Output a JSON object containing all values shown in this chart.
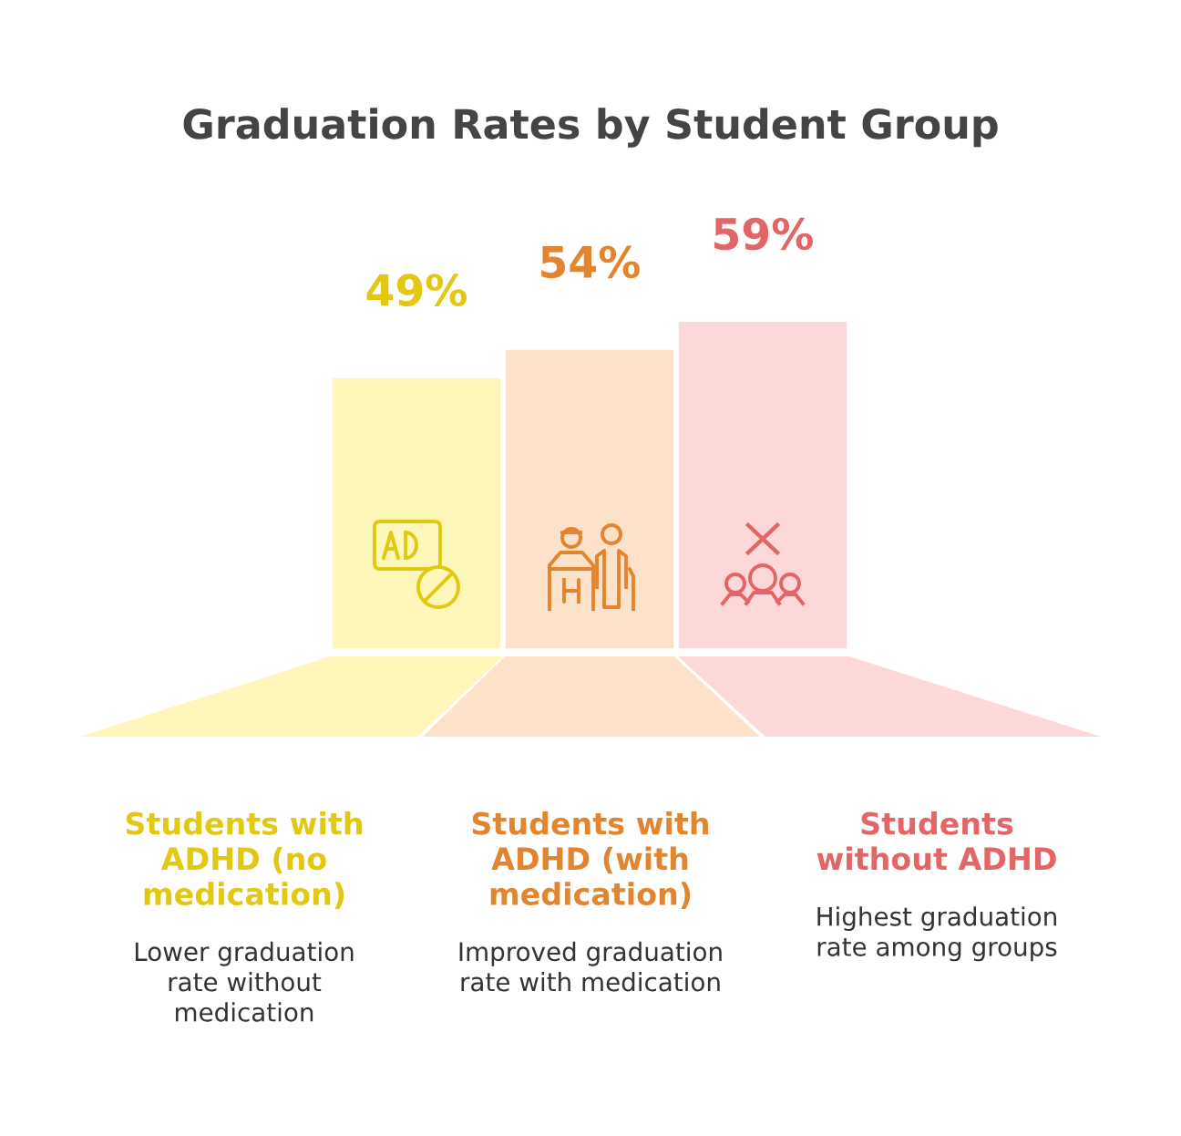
{
  "chart_data": {
    "type": "bar",
    "title": "Graduation Rates by Student Group",
    "categories": [
      "Students with\nADHD (no\nmedication)",
      "Students with\nADHD (with\nmedication)",
      "Students\nwithout ADHD"
    ],
    "values": [
      49,
      54,
      59
    ],
    "value_labels": [
      "49%",
      "54%",
      "59%"
    ],
    "colors": [
      "#fff6b9",
      "#fde1c8",
      "#fdd8d8"
    ],
    "annotations": [
      "Lower graduation\nrate without\nmedication",
      "Improved graduation\nrate with medication",
      "Highest graduation\nrate among groups"
    ]
  }
}
